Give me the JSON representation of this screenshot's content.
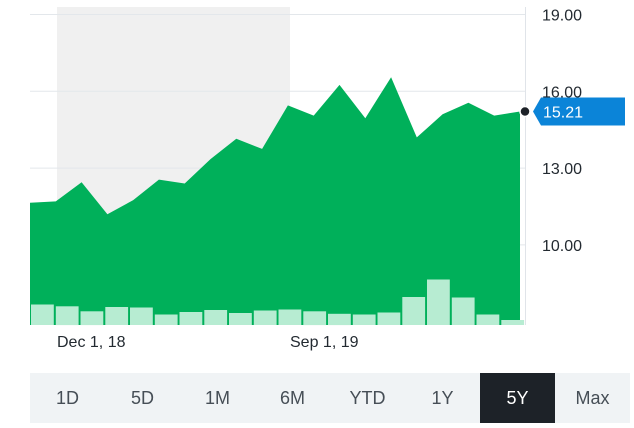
{
  "chart_data": {
    "type": "area",
    "title": "",
    "xlabel": "",
    "ylabel": "",
    "ylim": [
      7.5,
      19.5
    ],
    "y_ticks": [
      "19.00",
      "16.00",
      "13.00",
      "10.00"
    ],
    "x_ticks": [
      "Dec 1, 18",
      "Sep 1, 19"
    ],
    "current_price": "15.21",
    "grid": "horizontal",
    "area_color": "#00b05a",
    "volume_color": "#b7ecd2",
    "marker_color": "#0b84d8",
    "highlight_band_color": "#f0f0f0",
    "series": [
      {
        "values": [
          11.65,
          11.7,
          12.45,
          11.2,
          11.75,
          12.55,
          12.4,
          13.35,
          14.15,
          13.75,
          15.45,
          15.05,
          16.25,
          14.95,
          16.55,
          14.2,
          15.1,
          15.55,
          15.05,
          15.21
        ]
      }
    ],
    "volume": {
      "values": [
        0.82,
        0.75,
        0.55,
        0.72,
        0.7,
        0.42,
        0.52,
        0.6,
        0.48,
        0.58,
        0.62,
        0.55,
        0.45,
        0.42,
        0.5,
        1.12,
        1.82,
        1.1,
        0.42,
        0.2
      ]
    }
  },
  "range_selector": {
    "buttons": [
      {
        "label": "1D",
        "active": false
      },
      {
        "label": "5D",
        "active": false
      },
      {
        "label": "1M",
        "active": false
      },
      {
        "label": "6M",
        "active": false
      },
      {
        "label": "YTD",
        "active": false
      },
      {
        "label": "1Y",
        "active": false
      },
      {
        "label": "5Y",
        "active": true
      },
      {
        "label": "Max",
        "active": false
      }
    ]
  }
}
